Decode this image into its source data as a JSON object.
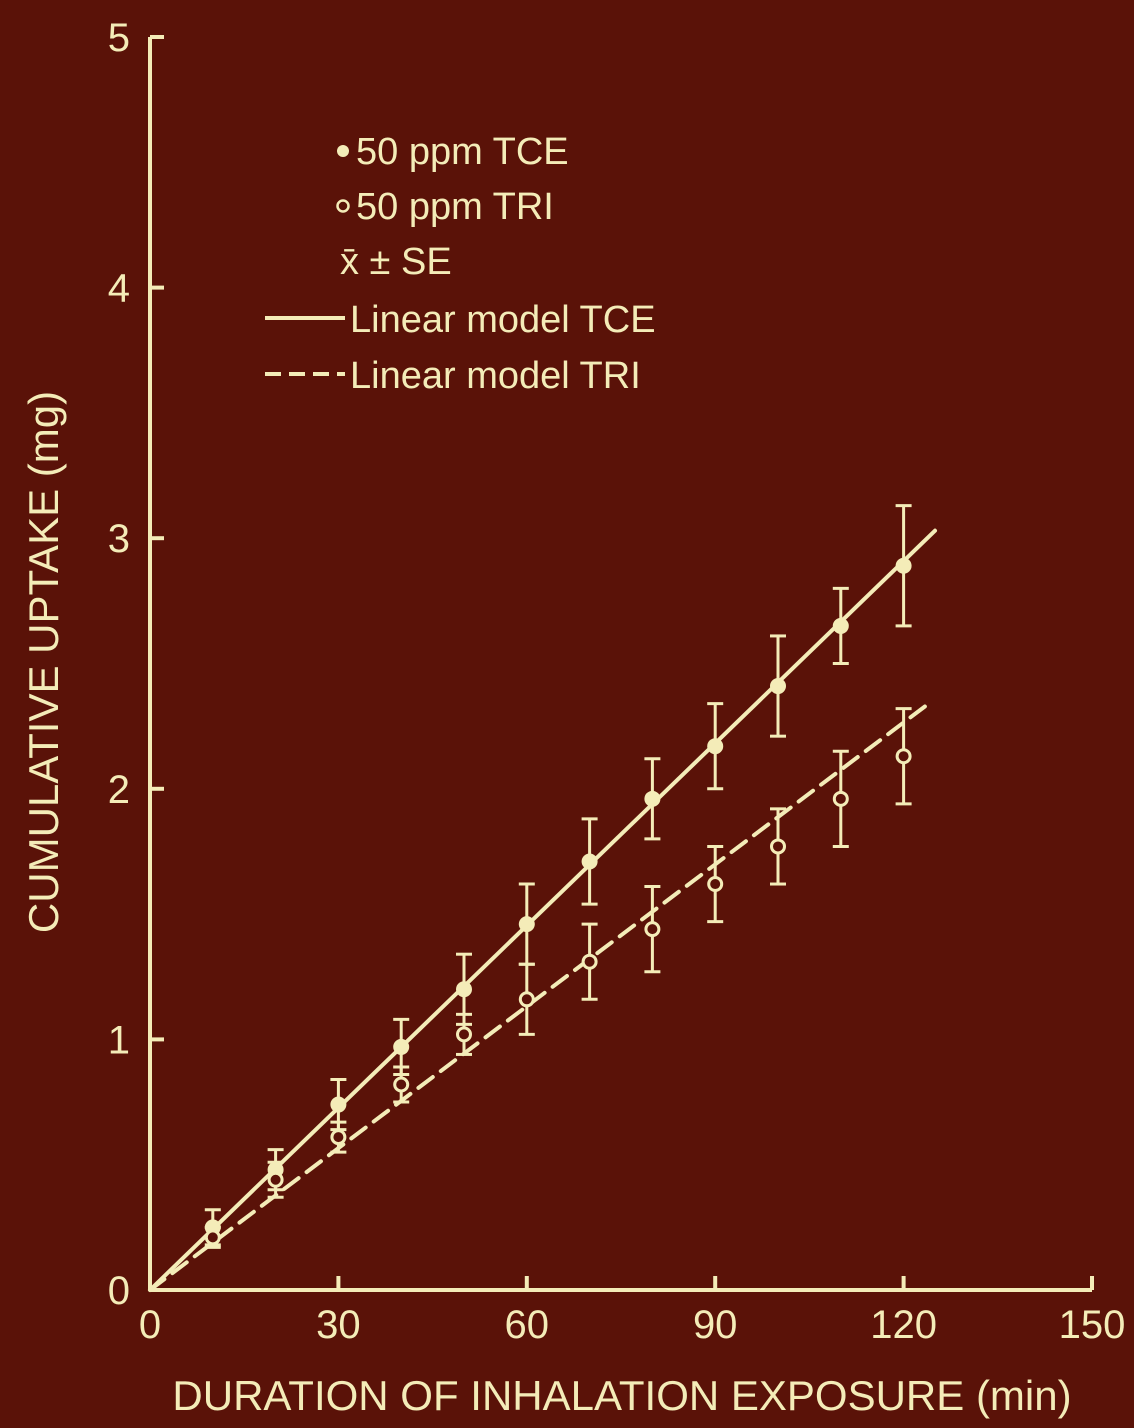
{
  "colors": {
    "background": "#5a1208",
    "ink": "#f4ecb8"
  },
  "chart_data": {
    "type": "scatter",
    "xlabel": "DURATION OF INHALATION EXPOSURE (min)",
    "ylabel": "CUMULATIVE UPTAKE (mg)",
    "xlim": [
      0,
      150
    ],
    "ylim": [
      0,
      5
    ],
    "xticks": [
      0,
      30,
      60,
      90,
      120,
      150
    ],
    "yticks": [
      0,
      1,
      2,
      3,
      4,
      5
    ],
    "x_tick_labels": [
      "0",
      "30",
      "60",
      "90",
      "120",
      "150"
    ],
    "y_tick_labels": [
      "0",
      "1",
      "2",
      "3",
      "4",
      "5"
    ],
    "grid": false,
    "legend_position": "top-left",
    "legend": {
      "tce_points": "50 ppm TCE",
      "tri_points": "50 ppm TRI",
      "error_note": "x̄ ± SE",
      "tce_model": "Linear model TCE",
      "tri_model": "Linear model TRI"
    },
    "series": [
      {
        "name": "50 ppm TCE",
        "marker": "filled-circle",
        "x": [
          10,
          20,
          30,
          40,
          50,
          60,
          70,
          80,
          90,
          100,
          110,
          120
        ],
        "y": [
          0.25,
          0.48,
          0.74,
          0.97,
          1.2,
          1.46,
          1.71,
          1.96,
          2.17,
          2.41,
          2.65,
          2.89
        ],
        "se": [
          0.07,
          0.08,
          0.1,
          0.11,
          0.14,
          0.16,
          0.17,
          0.16,
          0.17,
          0.2,
          0.15,
          0.24
        ]
      },
      {
        "name": "50 ppm TRI",
        "marker": "open-circle",
        "x": [
          10,
          20,
          30,
          40,
          50,
          60,
          70,
          80,
          90,
          100,
          110,
          120
        ],
        "y": [
          0.21,
          0.44,
          0.61,
          0.82,
          1.02,
          1.16,
          1.31,
          1.44,
          1.62,
          1.77,
          1.96,
          2.13
        ],
        "se": [
          0.04,
          0.07,
          0.06,
          0.07,
          0.08,
          0.14,
          0.15,
          0.17,
          0.15,
          0.15,
          0.19,
          0.19
        ]
      },
      {
        "name": "Linear model TCE",
        "line": "solid",
        "x": [
          0,
          125
        ],
        "y": [
          0,
          3.03
        ]
      },
      {
        "name": "Linear model TRI",
        "line": "dashed",
        "x": [
          0,
          124
        ],
        "y": [
          0,
          2.34
        ]
      }
    ]
  }
}
